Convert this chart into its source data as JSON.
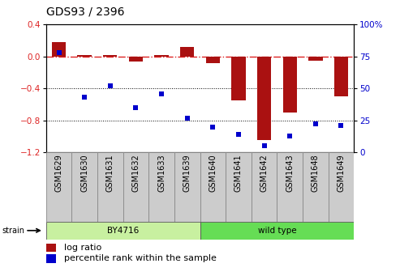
{
  "title": "GDS93 / 2396",
  "samples": [
    "GSM1629",
    "GSM1630",
    "GSM1631",
    "GSM1632",
    "GSM1633",
    "GSM1639",
    "GSM1640",
    "GSM1641",
    "GSM1642",
    "GSM1643",
    "GSM1648",
    "GSM1649"
  ],
  "log_ratio": [
    0.18,
    0.02,
    0.02,
    -0.06,
    0.02,
    0.12,
    -0.08,
    -0.55,
    -1.05,
    -0.7,
    -0.05,
    -0.5
  ],
  "percentile_rank": [
    78,
    43,
    52,
    35,
    46,
    27,
    20,
    14,
    5,
    13,
    22,
    21
  ],
  "strain_groups": [
    {
      "label": "BY4716",
      "start": 0,
      "end": 5,
      "color": "#c8f0a0"
    },
    {
      "label": "wild type",
      "start": 6,
      "end": 11,
      "color": "#66dd55"
    }
  ],
  "bar_color": "#aa1111",
  "dot_color": "#0000cc",
  "ylim_left": [
    -1.2,
    0.4
  ],
  "ylim_right": [
    0,
    100
  ],
  "yticks_left": [
    -1.2,
    -0.8,
    -0.4,
    0.0,
    0.4
  ],
  "yticks_right": [
    0,
    25,
    50,
    75,
    100
  ],
  "hline_color": "#dd2222",
  "dotted_lines": [
    -0.4,
    -0.8
  ],
  "legend_items": [
    {
      "label": "log ratio",
      "color": "#aa1111"
    },
    {
      "label": "percentile rank within the sample",
      "color": "#0000cc"
    }
  ],
  "strain_label": "strain",
  "label_bg": "#cccccc",
  "plot_bg": "#ffffff",
  "grid_dotted_color": "#555555",
  "title_fontsize": 10,
  "tick_fontsize": 7.5,
  "label_fontsize": 7,
  "legend_fontsize": 8
}
